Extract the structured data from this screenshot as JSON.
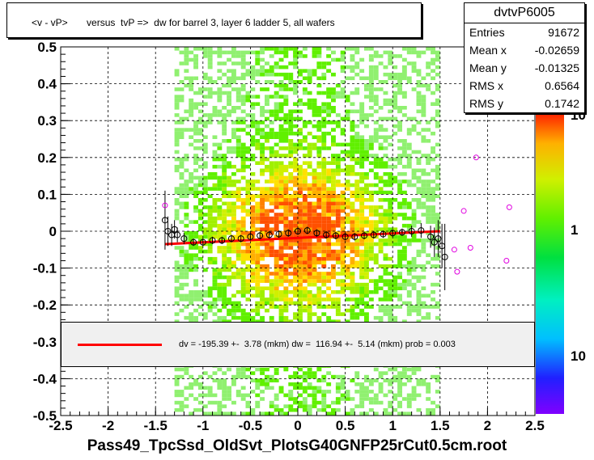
{
  "chart_data": {
    "type": "scatter",
    "title": "<v - vP>       versus  tvP =>  dw for barrel 3, layer 6 ladder 5, all wafers",
    "xlabel": "Pass49_TpcSsd_OldSvt_PlotsG40GNFP25rCut0.5cm.root",
    "ylabel": "",
    "xlim": [
      -2.5,
      2.5
    ],
    "ylim": [
      -0.5,
      0.5
    ],
    "x_ticks": [
      "-2.5",
      "-2",
      "-1.5",
      "-1",
      "-0.5",
      "0",
      "0.5",
      "1",
      "1.5",
      "2",
      "2.5"
    ],
    "y_ticks": [
      "-0.5",
      "-0.4",
      "-0.3",
      "-0.2",
      "-0.1",
      "0",
      "0.1",
      "0.2",
      "0.3",
      "0.4",
      "0.5"
    ],
    "grid": true,
    "colorbar_labels": [
      "10",
      "1",
      "10"
    ],
    "histogram_extent": {
      "x": [
        -1.3,
        1.5
      ],
      "y": [
        -0.5,
        0.5
      ]
    },
    "profile_black": [
      {
        "x": -1.4,
        "y": 0.03,
        "err": 0.08
      },
      {
        "x": -1.37,
        "y": 0.0,
        "err": 0.04
      },
      {
        "x": -1.33,
        "y": -0.01,
        "err": 0.03
      },
      {
        "x": -1.3,
        "y": 0.005,
        "err": 0.025
      },
      {
        "x": -1.27,
        "y": -0.01,
        "err": 0.02
      },
      {
        "x": -1.2,
        "y": -0.02,
        "err": 0.015
      },
      {
        "x": -1.1,
        "y": -0.03,
        "err": 0.01
      },
      {
        "x": -1.0,
        "y": -0.03,
        "err": 0.01
      },
      {
        "x": -0.9,
        "y": -0.025,
        "err": 0.01
      },
      {
        "x": -0.8,
        "y": -0.025,
        "err": 0.01
      },
      {
        "x": -0.7,
        "y": -0.02,
        "err": 0.01
      },
      {
        "x": -0.6,
        "y": -0.02,
        "err": 0.01
      },
      {
        "x": -0.5,
        "y": -0.015,
        "err": 0.01
      },
      {
        "x": -0.4,
        "y": -0.012,
        "err": 0.01
      },
      {
        "x": -0.3,
        "y": -0.01,
        "err": 0.01
      },
      {
        "x": -0.2,
        "y": -0.008,
        "err": 0.01
      },
      {
        "x": -0.1,
        "y": -0.005,
        "err": 0.01
      },
      {
        "x": 0.0,
        "y": 0.0,
        "err": 0.01
      },
      {
        "x": 0.1,
        "y": 0.002,
        "err": 0.01
      },
      {
        "x": 0.2,
        "y": -0.005,
        "err": 0.01
      },
      {
        "x": 0.3,
        "y": -0.01,
        "err": 0.01
      },
      {
        "x": 0.4,
        "y": -0.012,
        "err": 0.01
      },
      {
        "x": 0.5,
        "y": -0.015,
        "err": 0.01
      },
      {
        "x": 0.6,
        "y": -0.015,
        "err": 0.01
      },
      {
        "x": 0.7,
        "y": -0.012,
        "err": 0.01
      },
      {
        "x": 0.8,
        "y": -0.01,
        "err": 0.01
      },
      {
        "x": 0.9,
        "y": -0.008,
        "err": 0.01
      },
      {
        "x": 1.0,
        "y": -0.005,
        "err": 0.01
      },
      {
        "x": 1.1,
        "y": -0.003,
        "err": 0.01
      },
      {
        "x": 1.2,
        "y": 0.0,
        "err": 0.015
      },
      {
        "x": 1.3,
        "y": 0.002,
        "err": 0.02
      },
      {
        "x": 1.4,
        "y": -0.015,
        "err": 0.03
      },
      {
        "x": 1.44,
        "y": -0.03,
        "err": 0.04
      },
      {
        "x": 1.48,
        "y": -0.02,
        "err": 0.05
      },
      {
        "x": 1.52,
        "y": -0.04,
        "err": 0.06
      },
      {
        "x": 1.55,
        "y": -0.07,
        "err": 0.09
      }
    ],
    "profile_magenta": [
      {
        "x": -1.4,
        "y": 0.07
      },
      {
        "x": 1.65,
        "y": -0.05
      },
      {
        "x": 1.68,
        "y": -0.11
      },
      {
        "x": 1.75,
        "y": 0.055
      },
      {
        "x": 1.82,
        "y": -0.045
      },
      {
        "x": 1.88,
        "y": 0.2
      },
      {
        "x": 2.2,
        "y": -0.08
      },
      {
        "x": 2.23,
        "y": 0.065
      }
    ],
    "fit_line": {
      "x": [
        -1.4,
        1.5
      ],
      "y": [
        -0.035,
        0.0
      ]
    }
  },
  "stats": {
    "name": "dvtvP6005",
    "rows": [
      {
        "label": "Entries",
        "value": "91672"
      },
      {
        "label": "Mean x",
        "value": "-0.02659"
      },
      {
        "label": "Mean y",
        "value": "-0.01325"
      },
      {
        "label": "RMS x",
        "value": "0.6564"
      },
      {
        "label": "RMS y",
        "value": "0.1742"
      }
    ]
  },
  "fit_legend": {
    "text": "dv = -195.39 +-  3.78 (mkm) dw =  116.94 +-  5.14 (mkm) prob = 0.003"
  }
}
